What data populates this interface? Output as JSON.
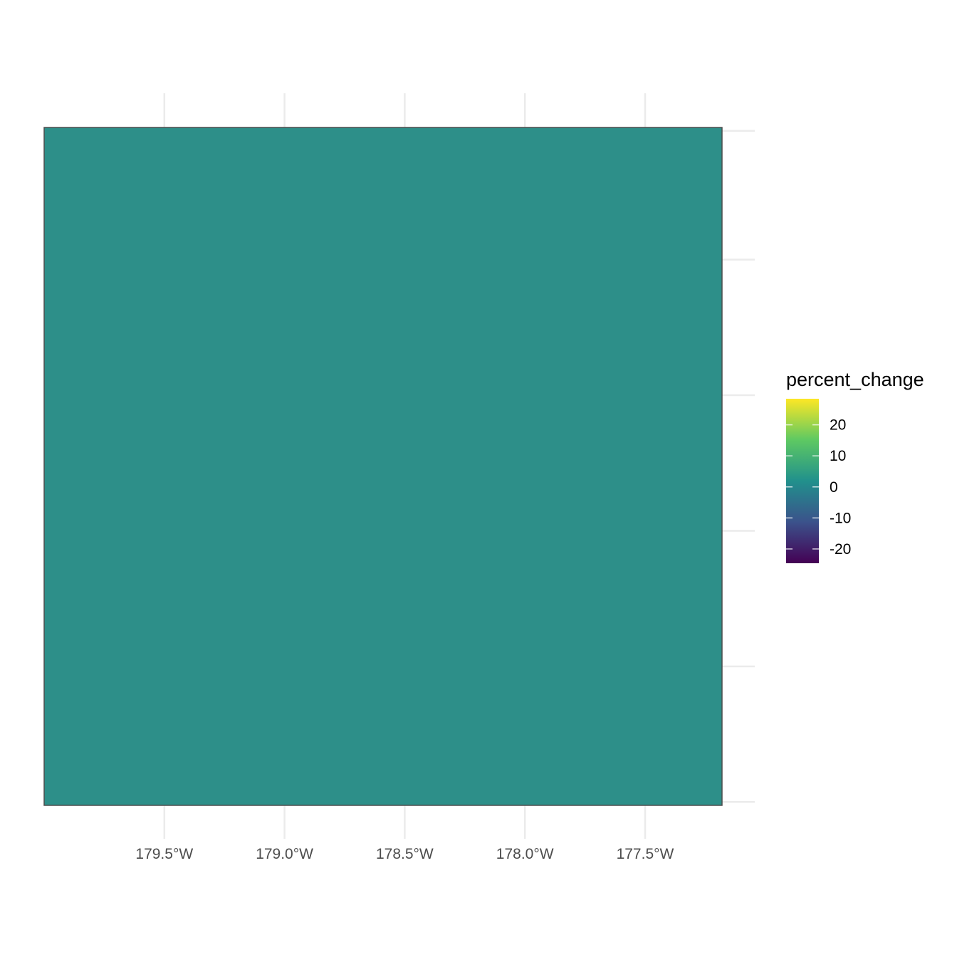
{
  "chart_data": {
    "type": "heatmap",
    "map": {
      "x_axis": {
        "ticks": [
          {
            "value": -179.5,
            "label": "179.5°W"
          },
          {
            "value": -179.0,
            "label": "179.0°W"
          },
          {
            "value": -178.5,
            "label": "178.5°W"
          },
          {
            "value": -178.0,
            "label": "178.0°W"
          },
          {
            "value": -177.5,
            "label": "177.5°W"
          }
        ],
        "range": [
          -180.0,
          -177.18
        ]
      },
      "y_axis": {
        "range": [
          0,
          1
        ],
        "gridlines_values": [
          0.005,
          0.205,
          0.405,
          0.605,
          0.805,
          0.995
        ],
        "tick_labels": []
      },
      "cell": {
        "x_range": [
          -180.0,
          -177.18
        ],
        "y_range": [
          0,
          1
        ],
        "value": 0,
        "fill_color": "#2d8f89",
        "border_color": "#4d4d4d"
      },
      "grid": true
    },
    "legend": {
      "title": "percent_change",
      "position": "right",
      "range": [
        -24.6,
        28.4
      ],
      "breaks": [
        20,
        10,
        0,
        -10,
        -20
      ],
      "break_labels": [
        "20",
        "10",
        "0",
        "-10",
        "-20"
      ],
      "palette": [
        "#440154",
        "#3b528b",
        "#21908c",
        "#5ec962",
        "#fde725"
      ],
      "palette_name": "viridis"
    }
  },
  "colors": {
    "background": "#ffffff",
    "gridline": "#ebebeb",
    "tick_text": "#4d4d4d",
    "legend_text": "#000000"
  }
}
